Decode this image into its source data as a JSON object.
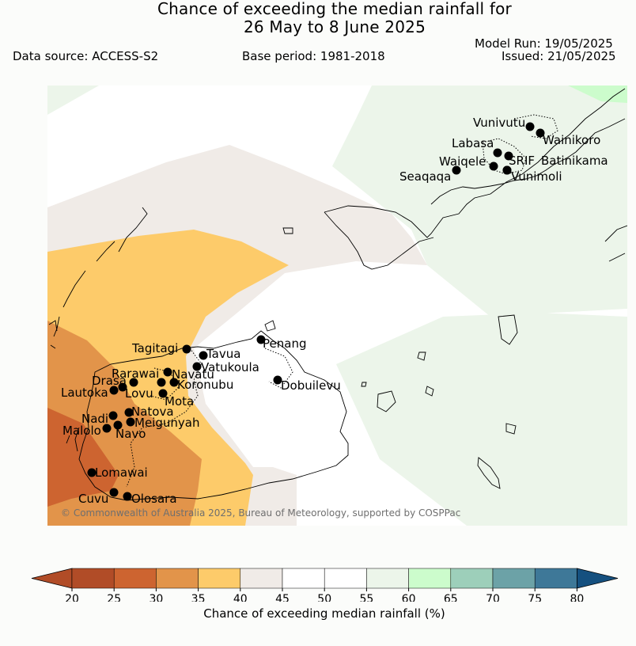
{
  "header": {
    "title_line1": "Chance of exceeding the median rainfall for",
    "title_line2": "26 May to 8 June 2025",
    "data_source": "Data source: ACCESS-S2",
    "base_period": "Base period: 1981-2018",
    "model_run": "Model Run: 19/05/2025",
    "issued": "Issued: 21/05/2025"
  },
  "map": {
    "stations": [
      {
        "name": "Vunivutu"
      },
      {
        "name": "Wainikoro"
      },
      {
        "name": "Labasa"
      },
      {
        "name": "Waiqele"
      },
      {
        "name": "SRIF"
      },
      {
        "name": "Batinikama"
      },
      {
        "name": "Seaqaqa"
      },
      {
        "name": "Vunimoli"
      },
      {
        "name": "Tagitagi"
      },
      {
        "name": "Tavua"
      },
      {
        "name": "Penang"
      },
      {
        "name": "Vatukoula"
      },
      {
        "name": "Rarawai"
      },
      {
        "name": "Navatu"
      },
      {
        "name": "Koronubu"
      },
      {
        "name": "Drasa"
      },
      {
        "name": "Lautoka"
      },
      {
        "name": "Lovu"
      },
      {
        "name": "Mota"
      },
      {
        "name": "Dobuilevu"
      },
      {
        "name": "Natova"
      },
      {
        "name": "Nadi"
      },
      {
        "name": "Meigunyah"
      },
      {
        "name": "Malolo"
      },
      {
        "name": "Navo"
      },
      {
        "name": "Lomawai"
      },
      {
        "name": "Cuvu"
      },
      {
        "name": "Olosara"
      }
    ],
    "copyright": "© Commonwealth of Australia 2025, Bureau of Meteorology, supported by COSPPac",
    "colors": {
      "c20": "#b14c27",
      "c25": "#cd6430",
      "c30": "#e2944a",
      "c35": "#fdcb6a",
      "c40": "#f0ebe7",
      "c45": "#ffffff",
      "c50": "#ffffff",
      "c55": "#ecf5ea",
      "c60": "#ccfccc",
      "c65": "#9dcfba",
      "c70": "#6ca2a7",
      "c75": "#3e7898",
      "c80": "#15507f"
    }
  },
  "colorbar": {
    "ticks": [
      "20",
      "25",
      "30",
      "35",
      "40",
      "45",
      "50",
      "55",
      "60",
      "65",
      "70",
      "75",
      "80"
    ],
    "label": "Chance of exceeding median rainfall (%)"
  }
}
